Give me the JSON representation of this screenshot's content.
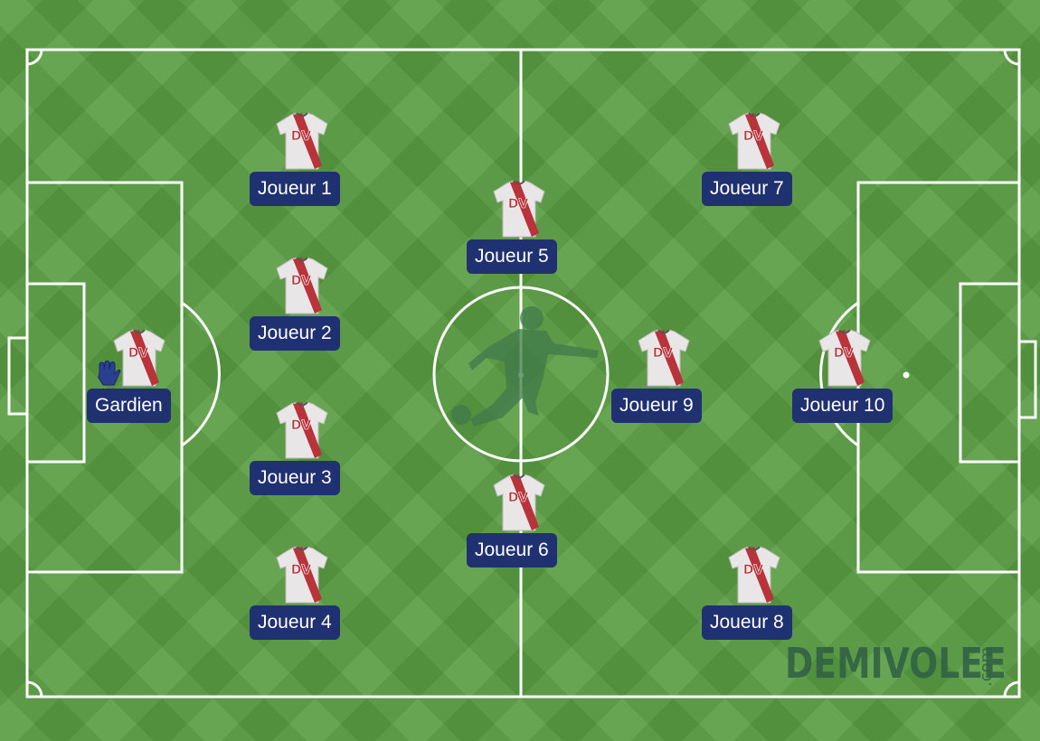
{
  "players": [
    {
      "id": "gk",
      "label": "Gardien",
      "goalkeeper": true
    },
    {
      "id": "p1",
      "label": "Joueur 1"
    },
    {
      "id": "p2",
      "label": "Joueur 2"
    },
    {
      "id": "p3",
      "label": "Joueur 3"
    },
    {
      "id": "p4",
      "label": "Joueur 4"
    },
    {
      "id": "p5",
      "label": "Joueur 5"
    },
    {
      "id": "p6",
      "label": "Joueur 6"
    },
    {
      "id": "p7",
      "label": "Joueur 7"
    },
    {
      "id": "p8",
      "label": "Joueur 8"
    },
    {
      "id": "p9",
      "label": "Joueur 9"
    },
    {
      "id": "p10",
      "label": "Joueur 10"
    }
  ],
  "shirt": {
    "text": "DV",
    "body_color": "#e8e6e6",
    "sash_color": "#b8343a"
  },
  "label_color": "#1f3170",
  "pitch_colors": {
    "grass": "#5a9d43",
    "lines": "#ffffff"
  },
  "brand": {
    "name": "DEMIVOLEE",
    "suffix": ".com"
  },
  "icons": {
    "goalkeeper": "goalkeeper-glove-icon",
    "center": "kicking-player-silhouette-icon"
  }
}
